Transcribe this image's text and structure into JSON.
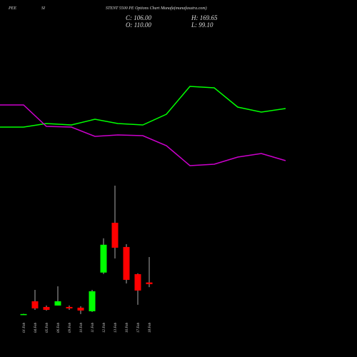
{
  "chart_data": {
    "type": "candlestick",
    "title_parts": [
      "PEE",
      "SI",
      "STENT 5500 PE Options Chart Munafa(munafasutra.com)"
    ],
    "ohlc_labels": [
      "C: 106.00",
      "H: 169.65",
      "O: 110.00",
      "L: 99.10"
    ],
    "categories": [
      "01 Feb",
      "04 Feb",
      "05 Feb",
      "06 Feb",
      "09 Feb",
      "10 Feb",
      "11 Feb",
      "12 Feb",
      "13 Feb",
      "16 Feb",
      "17 Feb",
      "18 Feb"
    ],
    "open": [
      35.8,
      65.8,
      52.4,
      55.8,
      52.4,
      50.8,
      42.4,
      133.2,
      250.1,
      193.2,
      129.5,
      110
    ],
    "close": [
      35.8,
      49.1,
      45.7,
      65.8,
      49.1,
      44.1,
      89.3,
      198.5,
      191.5,
      116.1,
      91,
      106
    ],
    "high": [
      36.5,
      92.6,
      55.8,
      100.9,
      55.8,
      54.1,
      92.6,
      213.6,
      337.2,
      199.8,
      131.2,
      169.65
    ],
    "low": [
      35.2,
      45.7,
      44,
      55.8,
      45.7,
      35.7,
      40.7,
      129.8,
      166.3,
      107.7,
      57.5,
      99.1
    ],
    "up_color": "#00ff00",
    "down_color": "#ff0000",
    "ylim": [
      -65,
      773
    ],
    "lines": {
      "ylim": [
        0,
        500
      ],
      "x": [
        0,
        33,
        65,
        100,
        133,
        165,
        200,
        233,
        266,
        300,
        333,
        366,
        400
      ],
      "xlim": [
        0,
        500
      ],
      "series": [
        {
          "color": "#00ff00",
          "values": [
            322,
            322,
            327,
            325,
            333,
            327,
            325,
            340,
            379,
            377,
            350,
            343,
            348
          ]
        },
        {
          "color": "#cc00cc",
          "values": [
            353,
            353,
            323,
            322,
            309,
            311,
            310,
            296,
            268,
            270,
            280,
            285,
            275
          ]
        }
      ]
    }
  }
}
